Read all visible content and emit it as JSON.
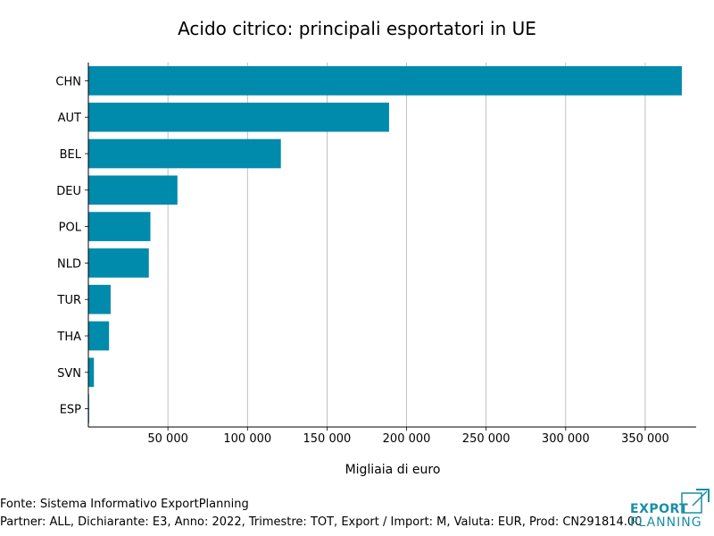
{
  "chart_data": {
    "type": "bar",
    "orientation": "horizontal",
    "title": "Acido citrico: principali esportatori in UE",
    "xlabel": "Migliaia di euro",
    "ylabel": "",
    "categories": [
      "CHN",
      "AUT",
      "BEL",
      "DEU",
      "POL",
      "NLD",
      "TUR",
      "THA",
      "SVN",
      "ESP"
    ],
    "values": [
      373000,
      189000,
      121000,
      56000,
      39000,
      38000,
      14000,
      13000,
      3500,
      500
    ],
    "xlim": [
      0,
      382000
    ],
    "xticks": [
      50000,
      100000,
      150000,
      200000,
      250000,
      300000,
      350000
    ],
    "xtick_labels": [
      "50 000",
      "100 000",
      "150 000",
      "200 000",
      "250 000",
      "300 000",
      "350 000"
    ],
    "bar_color": "#008aab",
    "grid": "vertical"
  },
  "footer": {
    "source": "Fonte: Sistema Informativo ExportPlanning",
    "meta": "Partner: ALL, Dichiarante: E3, Anno: 2022, Trimestre: TOT, Export / Import: M, Valuta: EUR, Prod: CN291814.00"
  },
  "logo": {
    "line1": "EXPORT",
    "line2": "PLANNING",
    "color": "#1a8ea8"
  }
}
